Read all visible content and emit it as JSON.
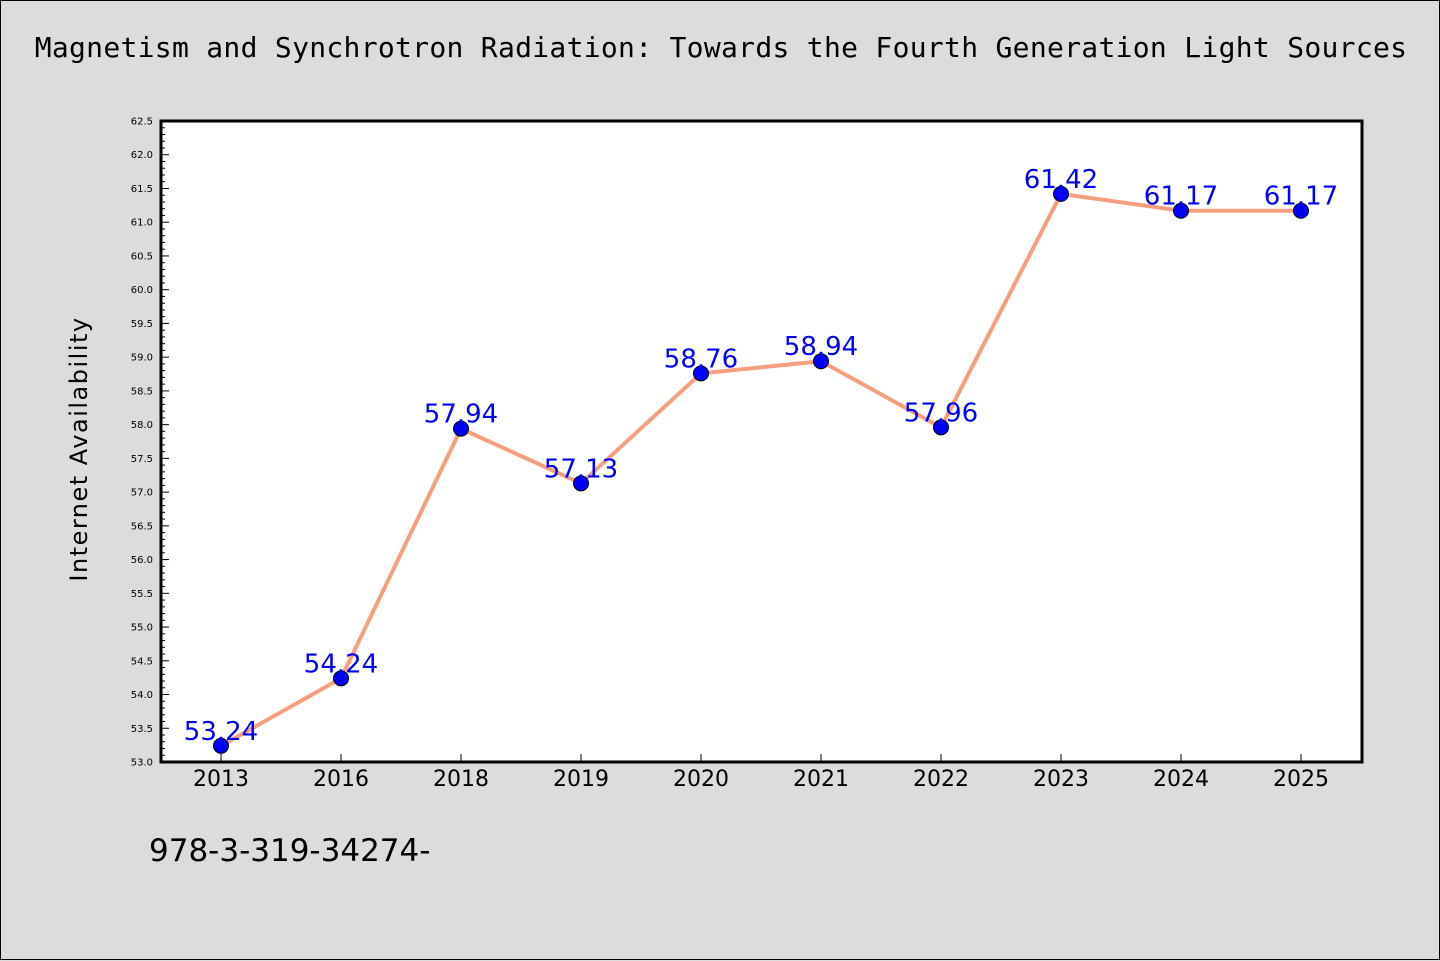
{
  "chart_data": {
    "type": "line",
    "title": "Magnetism and Synchrotron Radiation: Towards the Fourth Generation Light Sources",
    "xlabel": "",
    "ylabel": "Internet Availability",
    "categories": [
      "2013",
      "2016",
      "2018",
      "2019",
      "2020",
      "2021",
      "2022",
      "2023",
      "2024",
      "2025"
    ],
    "series": [
      {
        "values": [
          53.24,
          54.24,
          57.94,
          57.13,
          58.76,
          58.94,
          57.96,
          61.42,
          61.17,
          61.17
        ]
      }
    ],
    "data_labels": [
      "53.24",
      "54.24",
      "57.94",
      "57.13",
      "58.76",
      "58.94",
      "57.96",
      "61.42",
      "61.17",
      "61.17"
    ],
    "ylim": [
      53.0,
      62.5
    ],
    "y_ticks": [
      "53.0",
      "53.5",
      "54.0",
      "54.5",
      "55.0",
      "55.5",
      "56.0",
      "56.5",
      "57.0",
      "57.5",
      "58.0",
      "58.5",
      "59.0",
      "59.5",
      "60.0",
      "60.5",
      "61.0",
      "61.5",
      "62.0",
      "62.5"
    ],
    "grid": false,
    "line_color": "#f4a07e",
    "marker_color": "#0000ff",
    "label_color": "#0000ff"
  },
  "footer": {
    "isbn": "978-3-319-34274-"
  }
}
